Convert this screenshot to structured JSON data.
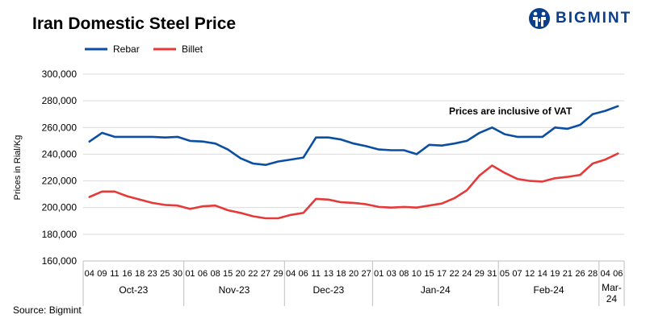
{
  "header": {
    "title": "Iran Domestic Steel Price",
    "logo_text": "BIGMINT"
  },
  "footer": {
    "source": "Source: Bigmint"
  },
  "colors": {
    "rebar": "#0b4ea2",
    "billet": "#e53a3a",
    "brand": "#0b3f8c"
  },
  "chart_data": {
    "type": "line",
    "title": "Iran Domestic Steel Price",
    "ylabel": "Prices in Rial/Kg",
    "xlabel": "",
    "ylim": [
      160000,
      300000
    ],
    "yticks": [
      "160,000",
      "180,000",
      "200,000",
      "220,000",
      "240,000",
      "260,000",
      "280,000",
      "300,000"
    ],
    "grid": true,
    "legend_position": "top-left",
    "annotation": "Prices are inclusive  of VAT",
    "x": [
      "04",
      "09",
      "11",
      "16",
      "18",
      "23",
      "25",
      "30",
      "01",
      "06",
      "08",
      "15",
      "20",
      "22",
      "27",
      "29",
      "04",
      "06",
      "11",
      "13",
      "18",
      "20",
      "27",
      "01",
      "03",
      "08",
      "10",
      "15",
      "17",
      "22",
      "24",
      "29",
      "31",
      "05",
      "07",
      "12",
      "14",
      "19",
      "21",
      "26",
      "28",
      "04",
      "06"
    ],
    "month_groups": [
      {
        "label": "Oct-23",
        "count": 8
      },
      {
        "label": "Nov-23",
        "count": 8
      },
      {
        "label": "Dec-23",
        "count": 7
      },
      {
        "label": "Jan-24",
        "count": 10
      },
      {
        "label": "Feb-24",
        "count": 8
      },
      {
        "label": "Mar-24",
        "count": 2
      }
    ],
    "series": [
      {
        "name": "Rebar",
        "values": [
          249500,
          256000,
          253000,
          253000,
          253000,
          253000,
          252500,
          253000,
          250000,
          249500,
          248000,
          243500,
          237000,
          233000,
          232000,
          234500,
          236000,
          237500,
          252500,
          252500,
          251000,
          248000,
          246000,
          243500,
          243000,
          243000,
          240000,
          247000,
          246500,
          248000,
          250000,
          256000,
          260000,
          255000,
          253000,
          253000,
          253000,
          260000,
          259000,
          262000,
          270000,
          272500,
          276000
        ]
      },
      {
        "name": "Billet",
        "values": [
          208000,
          212000,
          212000,
          208500,
          206000,
          203500,
          202000,
          201500,
          199000,
          201000,
          201500,
          198000,
          196000,
          193500,
          192000,
          192000,
          194500,
          196000,
          206500,
          206000,
          204000,
          203500,
          202500,
          200500,
          200000,
          200500,
          200000,
          201500,
          203000,
          207000,
          213000,
          224000,
          231500,
          226000,
          221500,
          220000,
          219500,
          222000,
          223000,
          224500,
          233000,
          236000,
          240500
        ]
      }
    ]
  }
}
